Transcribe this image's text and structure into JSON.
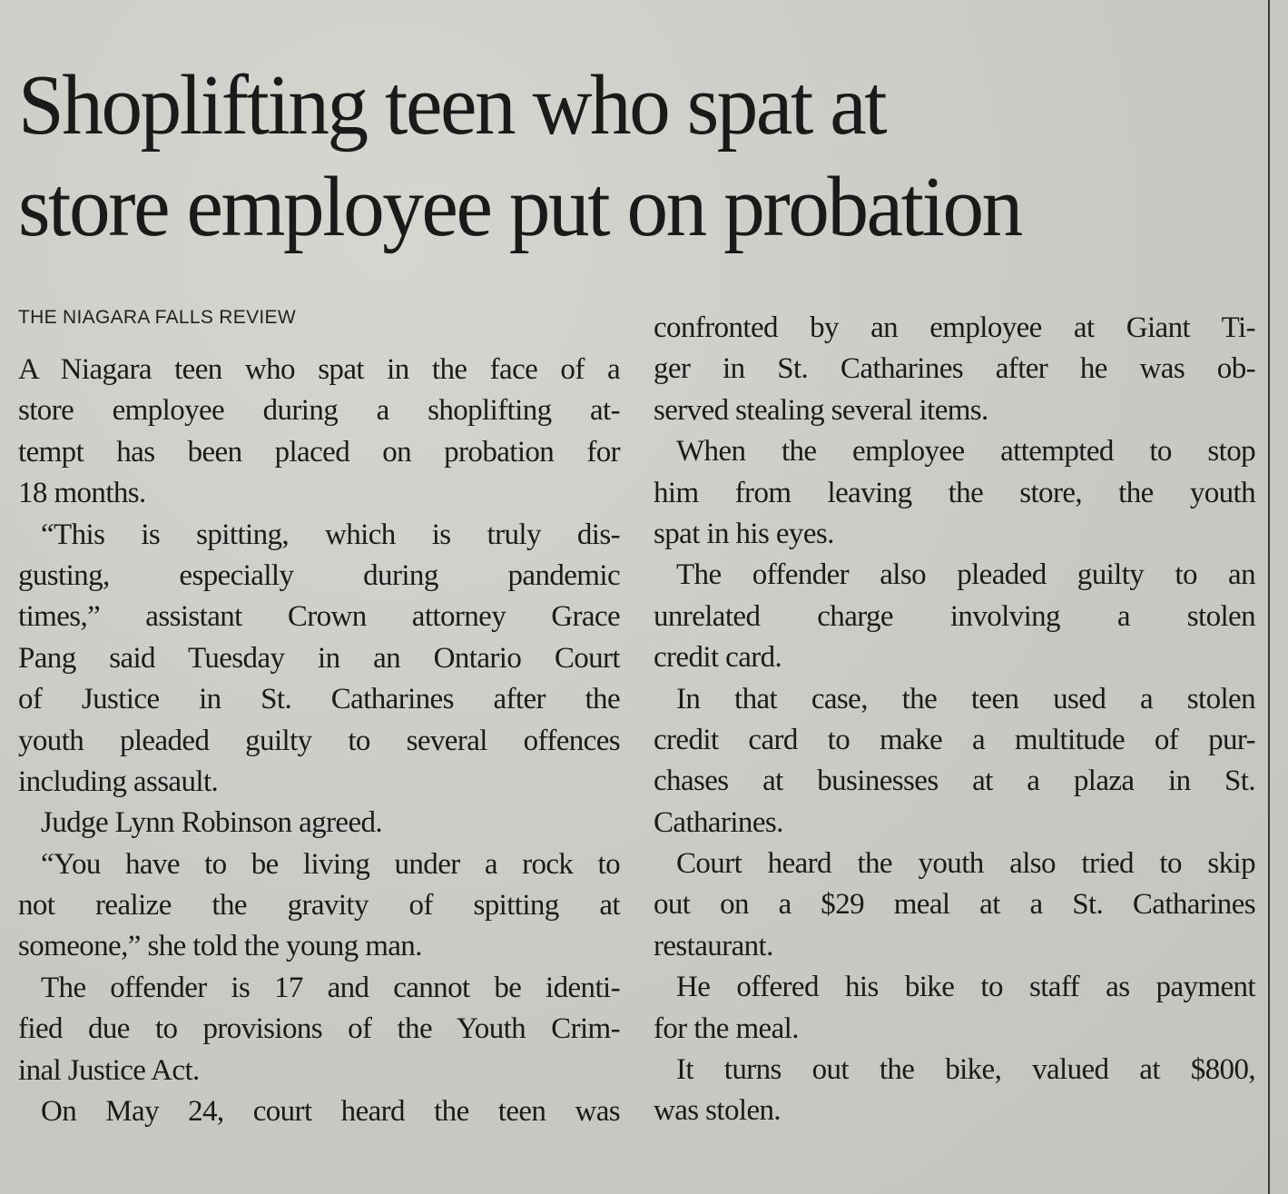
{
  "headline": {
    "lines": [
      "Shoplifting teen who spat at",
      "store employee put on probation"
    ]
  },
  "byline": "THE NIAGARA FALLS REVIEW",
  "left_column": [
    {
      "indent": false,
      "lines": [
        "A Niagara teen who spat in the face of a",
        "store employee during a shoplifting at-",
        "tempt has been placed on probation for",
        "18 months."
      ]
    },
    {
      "indent": true,
      "lines": [
        "“This is spitting, which is truly dis-",
        "gusting, especially during pandemic",
        "times,” assistant Crown attorney Grace",
        "Pang said Tuesday in an Ontario Court",
        "of Justice in St. Catharines after the",
        "youth pleaded guilty to several offences",
        "including assault."
      ]
    },
    {
      "indent": true,
      "lines": [
        "Judge Lynn Robinson agreed."
      ]
    },
    {
      "indent": true,
      "lines": [
        "“You have to be living under a rock to",
        "not realize the gravity of spitting at",
        "someone,” she told the young man."
      ]
    },
    {
      "indent": true,
      "lines": [
        "The offender is 17 and cannot be identi-",
        "fied due to provisions of the Youth Crim-",
        "inal Justice Act."
      ]
    },
    {
      "indent": true,
      "continues": true,
      "lines": [
        "On May 24, court heard the teen was"
      ]
    }
  ],
  "right_column": [
    {
      "indent": false,
      "lines": [
        "confronted by an employee at Giant Ti-",
        "ger in St. Catharines after he was ob-",
        "served stealing several items."
      ]
    },
    {
      "indent": true,
      "lines": [
        "When the employee attempted to stop",
        "him from leaving the store, the youth",
        "spat in his eyes."
      ]
    },
    {
      "indent": true,
      "lines": [
        "The offender also pleaded guilty to an",
        "unrelated charge involving a stolen",
        "credit card."
      ]
    },
    {
      "indent": true,
      "lines": [
        "In that case, the teen used a stolen",
        "credit card to make a multitude of pur-",
        "chases at businesses at a plaza in St.",
        "Catharines."
      ]
    },
    {
      "indent": true,
      "lines": [
        "Court heard the youth also tried to skip",
        "out on a $29 meal at a St. Catharines",
        "restaurant."
      ]
    },
    {
      "indent": true,
      "lines": [
        "He offered his bike to staff as payment",
        "for the meal."
      ]
    },
    {
      "indent": true,
      "lines": [
        "It turns out the bike, valued at $800,",
        "was stolen."
      ]
    }
  ],
  "colors": {
    "paper": "#cdcdc8",
    "ink": "#1b1b1b"
  }
}
